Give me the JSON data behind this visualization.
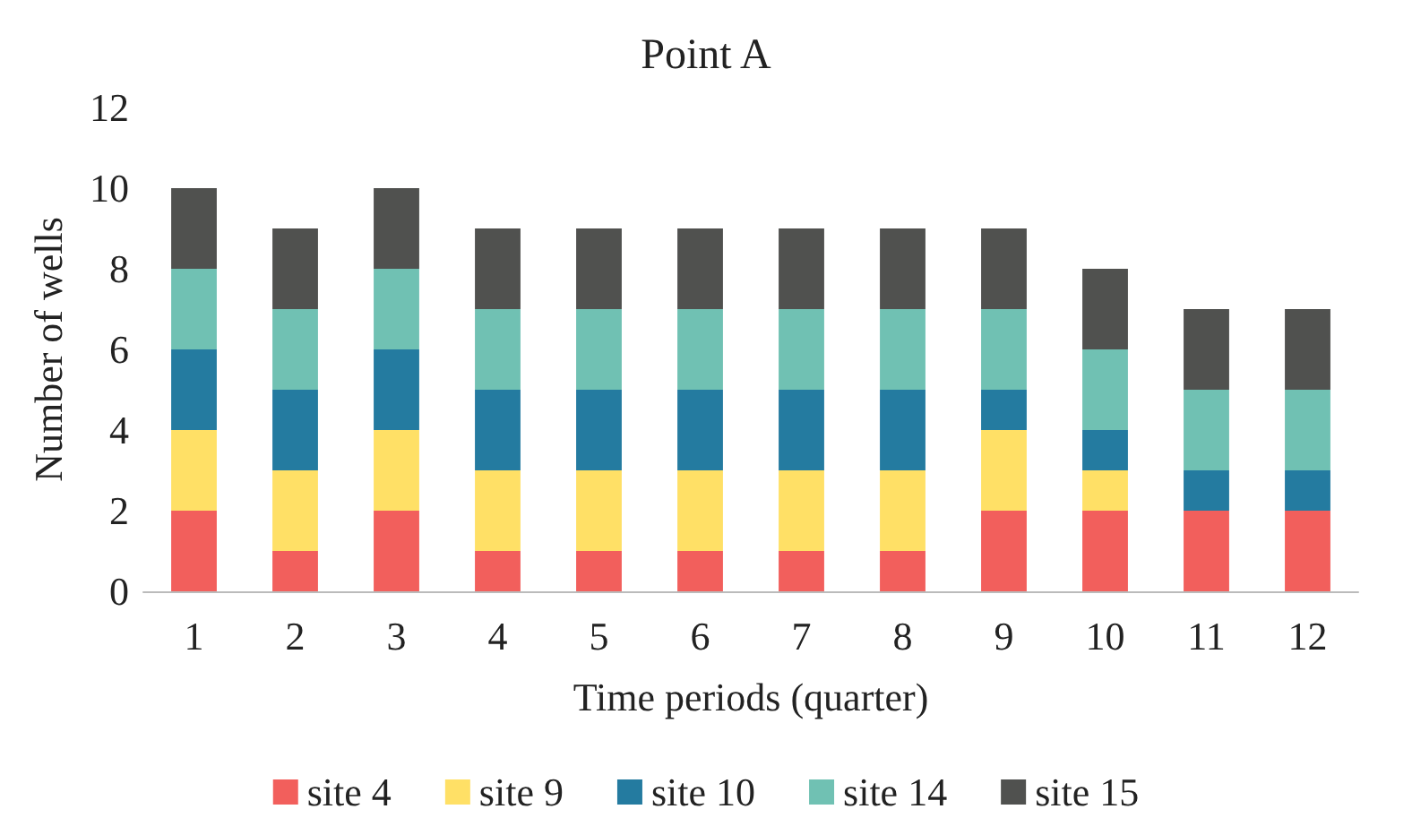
{
  "chart_data": {
    "type": "bar",
    "title": "Point A",
    "xlabel": "Time periods (quarter)",
    "ylabel": "Number of wells",
    "categories": [
      "1",
      "2",
      "3",
      "4",
      "5",
      "6",
      "7",
      "8",
      "9",
      "10",
      "11",
      "12"
    ],
    "stacked": true,
    "ylim": [
      0,
      12
    ],
    "yticks": [
      0,
      2,
      4,
      6,
      8,
      10,
      12
    ],
    "grid": false,
    "legend": "bottom",
    "series": [
      {
        "name": "site 4",
        "color": "#f25f5c",
        "values": [
          2,
          1,
          2,
          1,
          1,
          1,
          1,
          1,
          2,
          2,
          2,
          2
        ]
      },
      {
        "name": "site 9",
        "color": "#ffe066",
        "values": [
          2,
          2,
          2,
          2,
          2,
          2,
          2,
          2,
          2,
          1,
          0,
          0
        ]
      },
      {
        "name": "site 10",
        "color": "#247ba0",
        "values": [
          2,
          2,
          2,
          2,
          2,
          2,
          2,
          2,
          1,
          1,
          1,
          1
        ]
      },
      {
        "name": "site 14",
        "color": "#70c1b3",
        "values": [
          2,
          2,
          2,
          2,
          2,
          2,
          2,
          2,
          2,
          2,
          2,
          2
        ]
      },
      {
        "name": "site 15",
        "color": "#50514f",
        "values": [
          2,
          2,
          2,
          2,
          2,
          2,
          2,
          2,
          2,
          2,
          2,
          2
        ]
      }
    ]
  }
}
